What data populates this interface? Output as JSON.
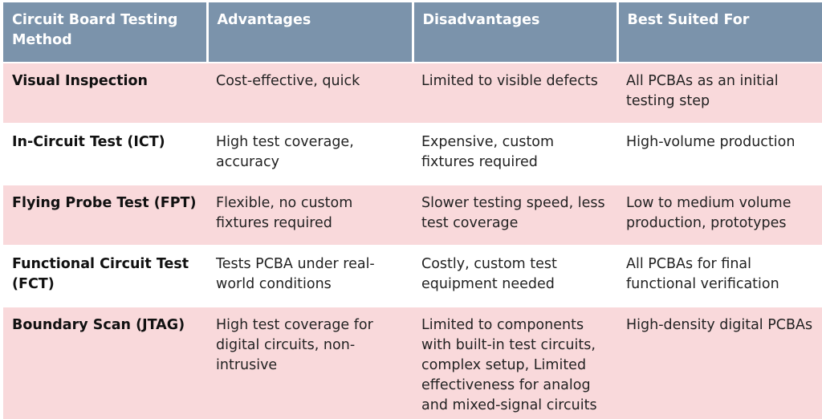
{
  "table": {
    "headers": [
      "Circuit Board Testing Method",
      "Advantages",
      "Disadvantages",
      "Best Suited For"
    ],
    "colors": {
      "header": "#7b93ab",
      "row_alt": "#f9d9db",
      "row": "#ffffff"
    },
    "rows": [
      {
        "method": "Visual Inspection",
        "advantages": "Cost-effective, quick",
        "disadvantages": "Limited to visible defects",
        "best_for": "All PCBAs as an initial testing step"
      },
      {
        "method": "In-Circuit Test (ICT)",
        "advantages": "High test coverage, accuracy",
        "disadvantages": "Expensive, custom fixtures required",
        "best_for": "High-volume production"
      },
      {
        "method": "Flying Probe Test (FPT)",
        "advantages": "Flexible, no custom fixtures required",
        "disadvantages": "Slower testing speed, less test coverage",
        "best_for": "Low to medium volume production, prototypes"
      },
      {
        "method": "Functional Circuit Test (FCT)",
        "advantages": "Tests PCBA under real-world conditions",
        "disadvantages": "Costly, custom test equipment needed",
        "best_for": "All PCBAs for final functional verification"
      },
      {
        "method": "Boundary Scan (JTAG)",
        "advantages": "High test coverage for digital circuits, non-intrusive",
        "disadvantages": "Limited to components with built-in test circuits, complex setup,  Limited effectiveness for analog and mixed-signal circuits",
        "best_for": "High-density digital PCBAs"
      }
    ]
  }
}
